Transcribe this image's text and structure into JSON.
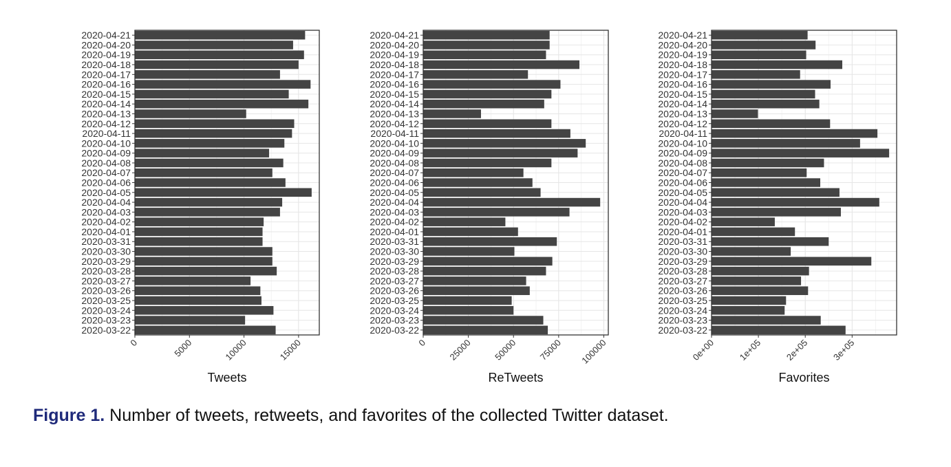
{
  "caption": {
    "label": "Figure 1.",
    "text": "Number of tweets, retweets, and favorites of the collected Twitter dataset."
  },
  "chart_data": [
    {
      "type": "bar",
      "orientation": "horizontal",
      "xlabel": "Tweets",
      "xlim": [
        0,
        16900
      ],
      "xticks": [
        0,
        5000,
        10000,
        15000
      ],
      "xtick_labels": [
        "0",
        "5000",
        "10000",
        "15000"
      ],
      "grid": true,
      "bar_color": "#444444",
      "categories": [
        "2020-04-21",
        "2020-04-20",
        "2020-04-19",
        "2020-04-18",
        "2020-04-17",
        "2020-04-16",
        "2020-04-15",
        "2020-04-14",
        "2020-04-13",
        "2020-04-12",
        "2020-04-11",
        "2020-04-10",
        "2020-04-09",
        "2020-04-08",
        "2020-04-07",
        "2020-04-06",
        "2020-04-05",
        "2020-04-04",
        "2020-04-03",
        "2020-04-02",
        "2020-04-01",
        "2020-03-31",
        "2020-03-30",
        "2020-03-29",
        "2020-03-28",
        "2020-03-27",
        "2020-03-26",
        "2020-03-25",
        "2020-03-24",
        "2020-03-23",
        "2020-03-22"
      ],
      "values": [
        15600,
        14500,
        15500,
        15000,
        13300,
        16100,
        14100,
        15900,
        10200,
        14600,
        14400,
        13700,
        12300,
        13600,
        12600,
        13800,
        16200,
        13500,
        13300,
        11800,
        11700,
        11700,
        12600,
        12600,
        13000,
        10600,
        11500,
        11600,
        12700,
        10100,
        12900
      ]
    },
    {
      "type": "bar",
      "orientation": "horizontal",
      "xlabel": "ReTweets",
      "xlim": [
        0,
        102500
      ],
      "xticks": [
        0,
        25000,
        50000,
        75000,
        100000
      ],
      "xtick_labels": [
        "0",
        "25000",
        "50000",
        "75000",
        "100000"
      ],
      "grid": true,
      "bar_color": "#444444",
      "categories": [
        "2020-04-21",
        "2020-04-20",
        "2020-04-19",
        "2020-04-18",
        "2020-04-17",
        "2020-04-16",
        "2020-04-15",
        "2020-04-14",
        "2020-04-13",
        "2020-04-12",
        "2020-04-11",
        "2020-04-10",
        "2020-04-09",
        "2020-04-08",
        "2020-04-07",
        "2020-04-06",
        "2020-04-05",
        "2020-04-04",
        "2020-04-03",
        "2020-04-02",
        "2020-04-01",
        "2020-03-31",
        "2020-03-30",
        "2020-03-29",
        "2020-03-28",
        "2020-03-27",
        "2020-03-26",
        "2020-03-25",
        "2020-03-24",
        "2020-03-23",
        "2020-03-22"
      ],
      "values": [
        70000,
        70000,
        68000,
        86500,
        58000,
        76000,
        71000,
        67000,
        32000,
        71000,
        81500,
        90000,
        85500,
        71000,
        55500,
        60500,
        65000,
        98000,
        81000,
        45500,
        52500,
        74000,
        50500,
        71500,
        68000,
        57000,
        59000,
        49000,
        50000,
        66500,
        69000
      ]
    },
    {
      "type": "bar",
      "orientation": "horizontal",
      "xlabel": "Favorites",
      "xlim": [
        0,
        395000
      ],
      "xticks": [
        0,
        100000,
        200000,
        300000
      ],
      "xtick_labels": [
        "0e+00",
        "1e+05",
        "2e+05",
        "3e+05"
      ],
      "grid": true,
      "bar_color": "#444444",
      "categories": [
        "2020-04-21",
        "2020-04-20",
        "2020-04-19",
        "2020-04-18",
        "2020-04-17",
        "2020-04-16",
        "2020-04-15",
        "2020-04-14",
        "2020-04-13",
        "2020-04-12",
        "2020-04-11",
        "2020-04-10",
        "2020-04-09",
        "2020-04-08",
        "2020-04-07",
        "2020-04-06",
        "2020-04-05",
        "2020-04-04",
        "2020-04-03",
        "2020-04-02",
        "2020-04-01",
        "2020-03-31",
        "2020-03-30",
        "2020-03-29",
        "2020-03-28",
        "2020-03-27",
        "2020-03-26",
        "2020-03-25",
        "2020-03-24",
        "2020-03-23",
        "2020-03-22"
      ],
      "values": [
        205000,
        222000,
        202000,
        279000,
        189000,
        254000,
        221000,
        230000,
        99000,
        253000,
        354000,
        317000,
        379000,
        240000,
        203000,
        232000,
        273000,
        358000,
        276000,
        135000,
        178000,
        250000,
        169000,
        341000,
        208000,
        191000,
        206000,
        159000,
        156000,
        233000,
        286000
      ]
    }
  ]
}
